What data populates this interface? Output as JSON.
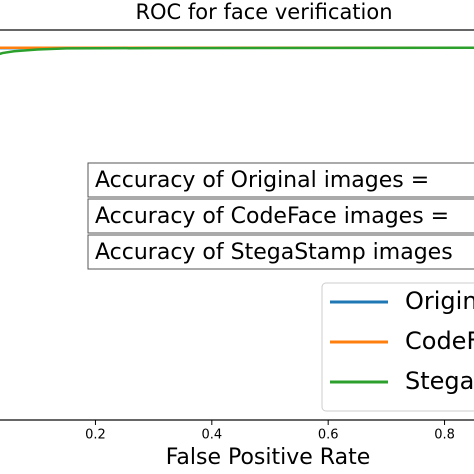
{
  "chart_data": {
    "type": "line",
    "title": "ROC for face verification",
    "xlabel": "False Positive Rate",
    "x": [
      0,
      0.005,
      0.01,
      0.02,
      0.04,
      0.06,
      0.1,
      0.15,
      0.3,
      1.0
    ],
    "series": [
      {
        "name": "Original",
        "color": "#1f77b4",
        "values": [
          0.997,
          0.998,
          0.998,
          0.999,
          0.999,
          0.999,
          1.0,
          1.0,
          1.0,
          1.0
        ]
      },
      {
        "name": "CodeFace",
        "color": "#ff7f0e",
        "values": [
          1.0,
          1.0,
          1.0,
          1.0,
          1.0,
          1.0,
          1.0,
          1.0,
          1.0,
          1.0
        ]
      },
      {
        "name": "StegaStamp",
        "color": "#2ca02c",
        "values": [
          0.93,
          0.95,
          0.96,
          0.975,
          0.985,
          0.99,
          0.995,
          0.998,
          0.999,
          1.0
        ]
      }
    ],
    "annotations": [
      "Accuracy of Original images =",
      "Accuracy of CodeFace images =",
      "Accuracy of StegaStamp images"
    ],
    "xlim": [
      -0.05,
      1.05
    ],
    "ylim": [
      -0.05,
      1.05
    ],
    "xticks": [
      0.2,
      0.4,
      0.6,
      0.8
    ]
  }
}
